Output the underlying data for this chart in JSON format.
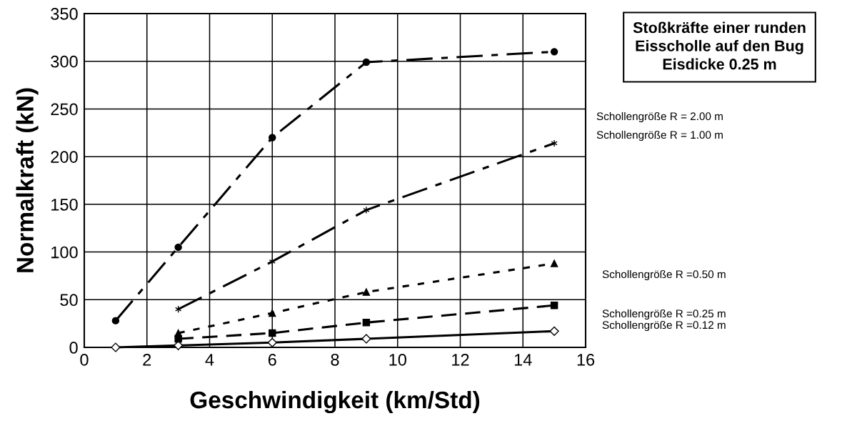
{
  "chart_data": {
    "type": "line",
    "title": "Stoßkräfte einer runden\nEisscholle auf den Bug\nEisdicke 0.25 m",
    "xlabel": "Geschwindigkeit (km/Std)",
    "ylabel": "Normalkraft (kN)",
    "xlim": [
      0,
      16
    ],
    "xticks": [
      0,
      2,
      4,
      6,
      8,
      10,
      12,
      14,
      16
    ],
    "ylim": [
      0,
      350
    ],
    "yticks": [
      0,
      50,
      100,
      150,
      200,
      250,
      300,
      350
    ],
    "grid": true,
    "series": [
      {
        "name": "Schollengröße R = 2.00 m",
        "color": "#000000",
        "x": [
          1,
          3,
          6,
          9,
          15
        ],
        "values": [
          28,
          105,
          220,
          299,
          310
        ],
        "marker": "circle",
        "line_style": "dashdot"
      },
      {
        "name": "Schollengröße R = 1.00 m",
        "color": "#000000",
        "x": [
          3,
          6,
          9,
          15
        ],
        "values": [
          40,
          90,
          144,
          214
        ],
        "marker": "cross",
        "line_style": "dashdot"
      },
      {
        "name": "Schollengröße R =0.50 m",
        "color": "#000000",
        "x": [
          3,
          6,
          9,
          15
        ],
        "values": [
          15,
          36,
          58,
          88
        ],
        "marker": "triangle",
        "line_style": "dotted"
      },
      {
        "name": "Schollengröße R =0.25 m",
        "color": "#000000",
        "x": [
          3,
          6,
          9,
          15
        ],
        "values": [
          9,
          15,
          26,
          44
        ],
        "marker": "square",
        "line_style": "dashed"
      },
      {
        "name": "Schollengröße R =0.12 m",
        "color": "#000000",
        "x": [
          1,
          3,
          6,
          9,
          15
        ],
        "values": [
          0,
          2,
          5,
          9,
          17
        ],
        "marker": "diamond",
        "line_style": "solid"
      }
    ]
  }
}
